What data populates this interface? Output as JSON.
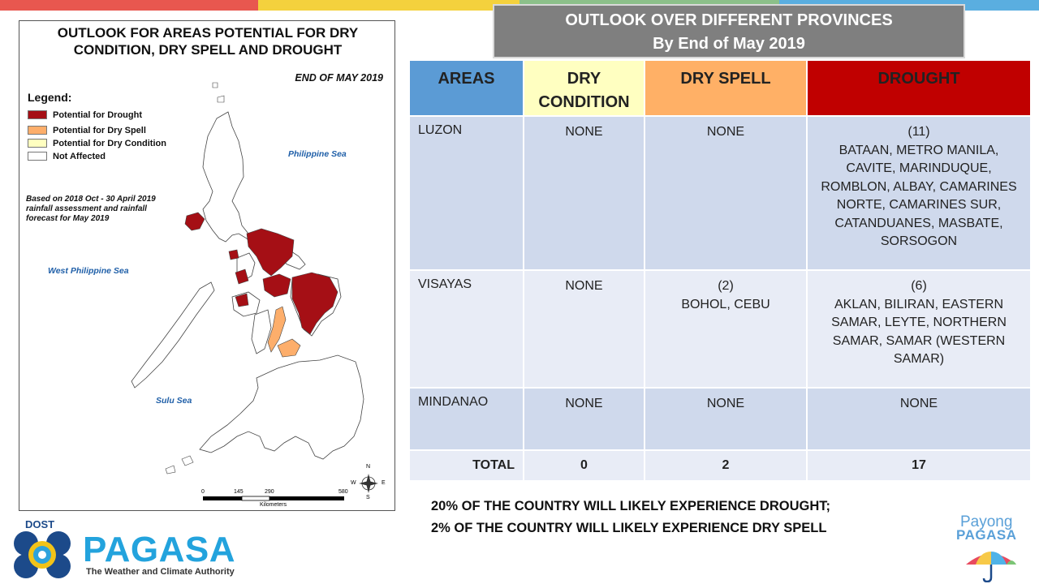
{
  "colors": {
    "drought": "#a50f15",
    "dry_spell": "#fdae6b",
    "dry_condition": "#ffffc0",
    "not_affected": "#ffffff",
    "header_gray": "#7f7f7f",
    "areas_blue": "#5b9bd5",
    "drought_red": "#c00000"
  },
  "map": {
    "title_line1": "OUTLOOK FOR AREAS POTENTIAL FOR DRY",
    "title_line2": "CONDITION,  DRY SPELL AND DROUGHT",
    "date": "END OF MAY 2019",
    "legend_title": "Legend:",
    "legend": [
      "Potential for Drought",
      "Potential for Dry Spell",
      "Potential for Dry Condition",
      "Not Affected"
    ],
    "note": "Based on 2018 Oct - 30 April 2019 rainfall assessment and rainfall forecast for May 2019",
    "seas": {
      "philippine": "Philippine Sea",
      "west_philippine": "West Philippine Sea",
      "sulu": "Sulu Sea"
    },
    "scale": {
      "ticks": [
        "0",
        "145",
        "290",
        "580"
      ],
      "unit": "Kilometers"
    },
    "compass": {
      "n": "N",
      "s": "S",
      "e": "E",
      "w": "W"
    }
  },
  "header": {
    "line1": "OUTLOOK OVER DIFFERENT PROVINCES",
    "line2": "By End of May 2019"
  },
  "table": {
    "columns": [
      "AREAS",
      "DRY CONDITION",
      "DRY SPELL",
      "DROUGHT"
    ],
    "rows": [
      {
        "area": "LUZON",
        "dry_condition": "NONE",
        "dry_spell": "NONE",
        "drought": "(11)\nBATAAN, METRO MANILA, CAVITE, MARINDUQUE, ROMBLON, ALBAY, CAMARINES NORTE, CAMARINES SUR, CATANDUANES, MASBATE, SORSOGON"
      },
      {
        "area": "VISAYAS",
        "dry_condition": "NONE",
        "dry_spell": "(2)\nBOHOL, CEBU",
        "drought": "(6)\nAKLAN, BILIRAN, EASTERN SAMAR, LEYTE, NORTHERN SAMAR,  SAMAR (WESTERN SAMAR)"
      },
      {
        "area": "MINDANAO",
        "dry_condition": "NONE",
        "dry_spell": "NONE",
        "drought": "NONE"
      }
    ],
    "total": {
      "label": "TOTAL",
      "dry_condition": "0",
      "dry_spell": "2",
      "drought": "17"
    }
  },
  "summary": {
    "line1": "20% OF THE COUNTRY  WILL LIKELY EXPERIENCE DROUGHT;",
    "line2": "2% OF THE COUNTRY WILL LIKELY EXPERIENCE DRY SPELL"
  },
  "logo": {
    "dost": "DOST",
    "name": "PAGASA",
    "tagline": "The Weather and Climate Authority"
  },
  "payong": {
    "line1": "Payong",
    "line2": "PAGASA"
  }
}
